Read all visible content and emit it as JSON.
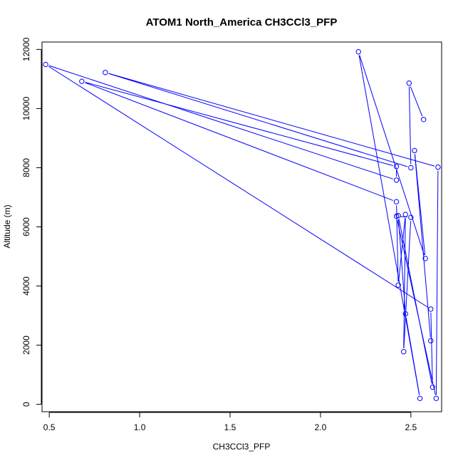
{
  "chart_data": {
    "type": "line",
    "title": "ATOM1 North_America CH3CCl3_PFP",
    "xlabel": "CH3CCl3_PFP",
    "ylabel": "Altitude (m)",
    "xlim": [
      0.46,
      2.67
    ],
    "ylim": [
      -250,
      12250
    ],
    "x_ticks": [
      0.5,
      1.0,
      1.5,
      2.0,
      2.5
    ],
    "x_tick_labels": [
      "0.5",
      "1.0",
      "1.5",
      "2.0",
      "2.5"
    ],
    "y_ticks": [
      0,
      2000,
      4000,
      6000,
      8000,
      10000,
      12000
    ],
    "y_tick_labels": [
      "0",
      "2000",
      "4000",
      "6000",
      "8000",
      "10000",
      "12000"
    ],
    "series": [
      {
        "color": "#0000ff",
        "marker": "open-circle",
        "line": true,
        "points": [
          {
            "x": 2.57,
            "y": 9630
          },
          {
            "x": 2.49,
            "y": 10860
          },
          {
            "x": 2.5,
            "y": 8000
          },
          {
            "x": 0.81,
            "y": 11220
          },
          {
            "x": 2.65,
            "y": 8020
          },
          {
            "x": 2.64,
            "y": 200
          },
          {
            "x": 2.42,
            "y": 6360
          },
          {
            "x": 2.5,
            "y": 6320
          },
          {
            "x": 2.46,
            "y": 1780
          },
          {
            "x": 2.47,
            "y": 6420
          },
          {
            "x": 2.43,
            "y": 4030
          },
          {
            "x": 2.42,
            "y": 6850
          },
          {
            "x": 0.68,
            "y": 10920
          },
          {
            "x": 2.42,
            "y": 8040
          },
          {
            "x": 2.42,
            "y": 7580
          },
          {
            "x": 0.48,
            "y": 11490
          },
          {
            "x": 2.61,
            "y": 3220
          },
          {
            "x": 2.62,
            "y": 580
          },
          {
            "x": 2.43,
            "y": 6380
          },
          {
            "x": 2.47,
            "y": 3060
          },
          {
            "x": 2.55,
            "y": 200
          },
          {
            "x": 2.21,
            "y": 11920
          },
          {
            "x": 2.58,
            "y": 4930
          },
          {
            "x": 2.52,
            "y": 8580
          },
          {
            "x": 2.61,
            "y": 2150
          }
        ]
      }
    ]
  }
}
